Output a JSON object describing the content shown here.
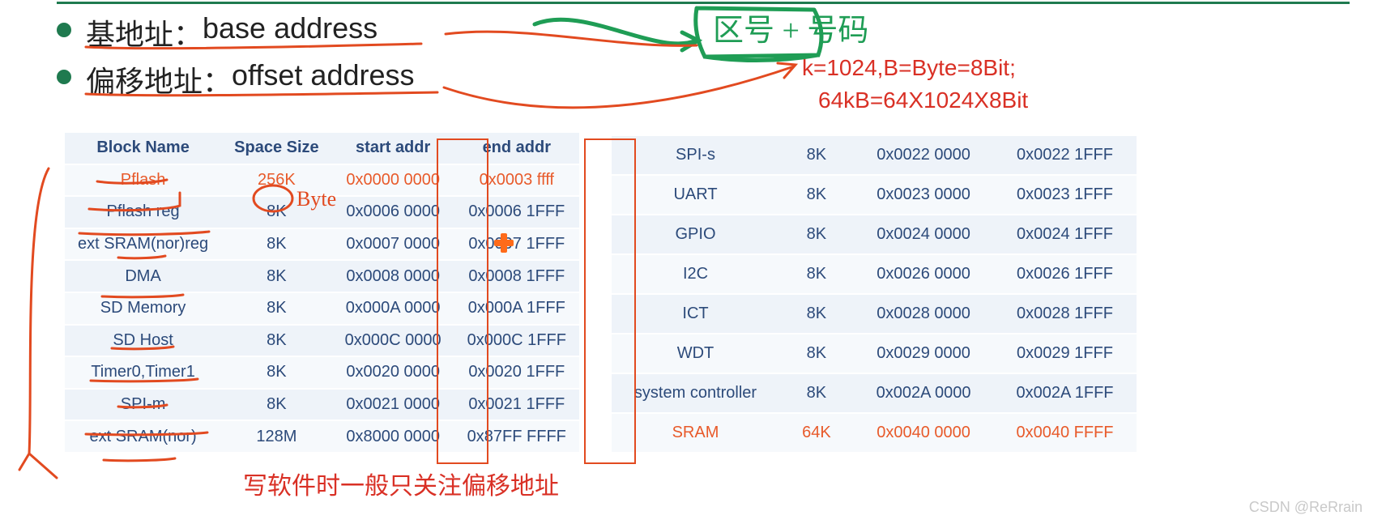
{
  "colors": {
    "accent_green": "#1f7a4f",
    "text_blue": "#2c4a7a",
    "table_bg": "#eef3f9",
    "table_bg_alt": "#f6f9fc",
    "highlight_orange": "#e85a2a",
    "annotation_red": "#e24a20",
    "annotation_green": "#1f9d55",
    "annotation_text_red": "#d93025",
    "watermark": "#c9c9c9"
  },
  "bullets": [
    {
      "cn": "基地址：",
      "en": "base address"
    },
    {
      "cn": "偏移地址：",
      "en": "offset address"
    }
  ],
  "table_left": {
    "headers": [
      "Block Name",
      "Space Size",
      "start addr",
      "end addr"
    ],
    "rows": [
      {
        "cells": [
          "Pflash",
          "256K",
          "0x0000 0000",
          "0x0003 ffff"
        ],
        "highlight": true
      },
      {
        "cells": [
          "Pflash reg",
          "8K",
          "0x0006 0000",
          "0x0006 1FFF"
        ],
        "highlight": false
      },
      {
        "cells": [
          "ext SRAM(nor)reg",
          "8K",
          "0x0007 0000",
          "0x0007 1FFF"
        ],
        "highlight": false
      },
      {
        "cells": [
          "DMA",
          "8K",
          "0x0008 0000",
          "0x0008 1FFF"
        ],
        "highlight": false
      },
      {
        "cells": [
          "SD Memory",
          "8K",
          "0x000A 0000",
          "0x000A 1FFF"
        ],
        "highlight": false
      },
      {
        "cells": [
          "SD Host",
          "8K",
          "0x000C 0000",
          "0x000C 1FFF"
        ],
        "highlight": false
      },
      {
        "cells": [
          "Timer0,Timer1",
          "8K",
          "0x0020 0000",
          "0x0020 1FFF"
        ],
        "highlight": false
      },
      {
        "cells": [
          "SPI-m",
          "8K",
          "0x0021 0000",
          "0x0021 1FFF"
        ],
        "highlight": false
      },
      {
        "cells": [
          "ext SRAM(nor)",
          "128M",
          "0x8000 0000",
          "0x87FF FFFF"
        ],
        "highlight": false
      }
    ]
  },
  "table_right": {
    "rows": [
      {
        "cells": [
          "SPI-s",
          "8K",
          "0x0022 0000",
          "0x0022 1FFF"
        ],
        "highlight": false
      },
      {
        "cells": [
          "UART",
          "8K",
          "0x0023 0000",
          "0x0023 1FFF"
        ],
        "highlight": false
      },
      {
        "cells": [
          "GPIO",
          "8K",
          "0x0024 0000",
          "0x0024 1FFF"
        ],
        "highlight": false
      },
      {
        "cells": [
          "I2C",
          "8K",
          "0x0026 0000",
          "0x0026 1FFF"
        ],
        "highlight": false
      },
      {
        "cells": [
          "ICT",
          "8K",
          "0x0028 0000",
          "0x0028 1FFF"
        ],
        "highlight": false
      },
      {
        "cells": [
          "WDT",
          "8K",
          "0x0029 0000",
          "0x0029 1FFF"
        ],
        "highlight": false
      },
      {
        "cells": [
          "system controller",
          "8K",
          "0x002A 0000",
          "0x002A 1FFF"
        ],
        "highlight": false
      },
      {
        "cells": [
          "SRAM",
          "64K",
          "0x0040 0000",
          "0x0040 FFFF"
        ],
        "highlight": true
      }
    ]
  },
  "annotations": {
    "green_box_text": "区号 + 号码",
    "red_byte_hand": "Byte",
    "red_formula_1": "k=1024,B=Byte=8Bit;",
    "red_formula_2": "64kB=64X1024X8Bit",
    "red_bottom_note": "写软件时一般只关注偏移地址"
  },
  "watermark": "CSDN @ReRrain"
}
